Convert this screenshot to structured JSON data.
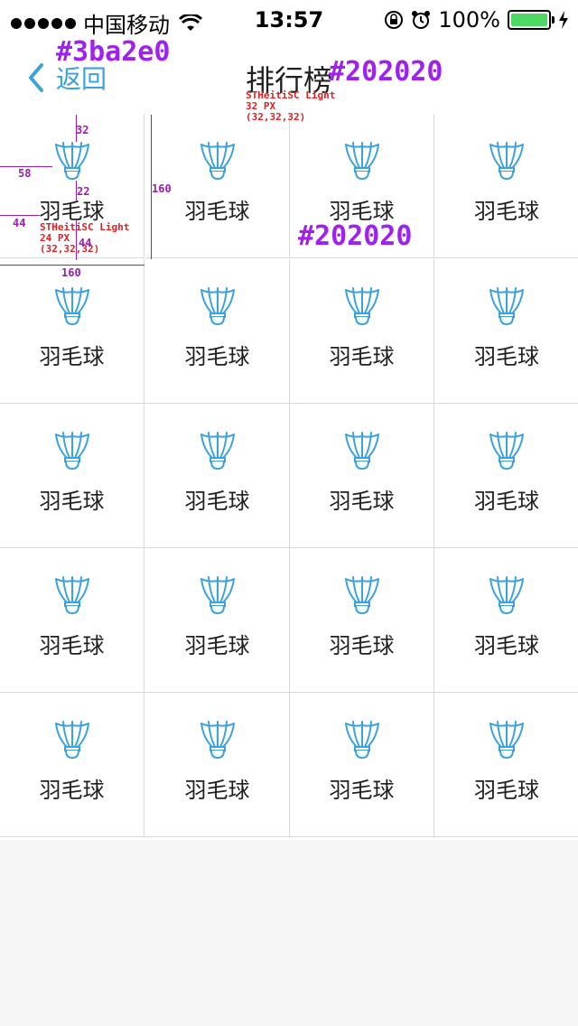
{
  "status_bar": {
    "carrier": "中国移动",
    "time": "13:57",
    "battery": "100%"
  },
  "nav": {
    "back_label": "返回",
    "title": "排行榜"
  },
  "colors": {
    "accent": "#3ba2e0",
    "text": "#202020"
  },
  "grid": {
    "item_label": "羽毛球",
    "item_icon": "shuttlecock-icon",
    "count": 20
  },
  "annotations": {
    "accent_color": "#3ba2e0",
    "title_color": "#202020",
    "title_font": "STHeitiSC Light",
    "title_size": "32 PX",
    "title_rgb": "(32,32,32)",
    "label_font": "STHeitiSC Light",
    "label_size": "24 PX",
    "label_rgb": "(32,32,32)",
    "label_color": "#202020",
    "dim_32": "32",
    "dim_58": "58",
    "dim_22": "22",
    "dim_160v": "160",
    "dim_44a": "44",
    "dim_44b": "44",
    "dim_160h": "160"
  }
}
